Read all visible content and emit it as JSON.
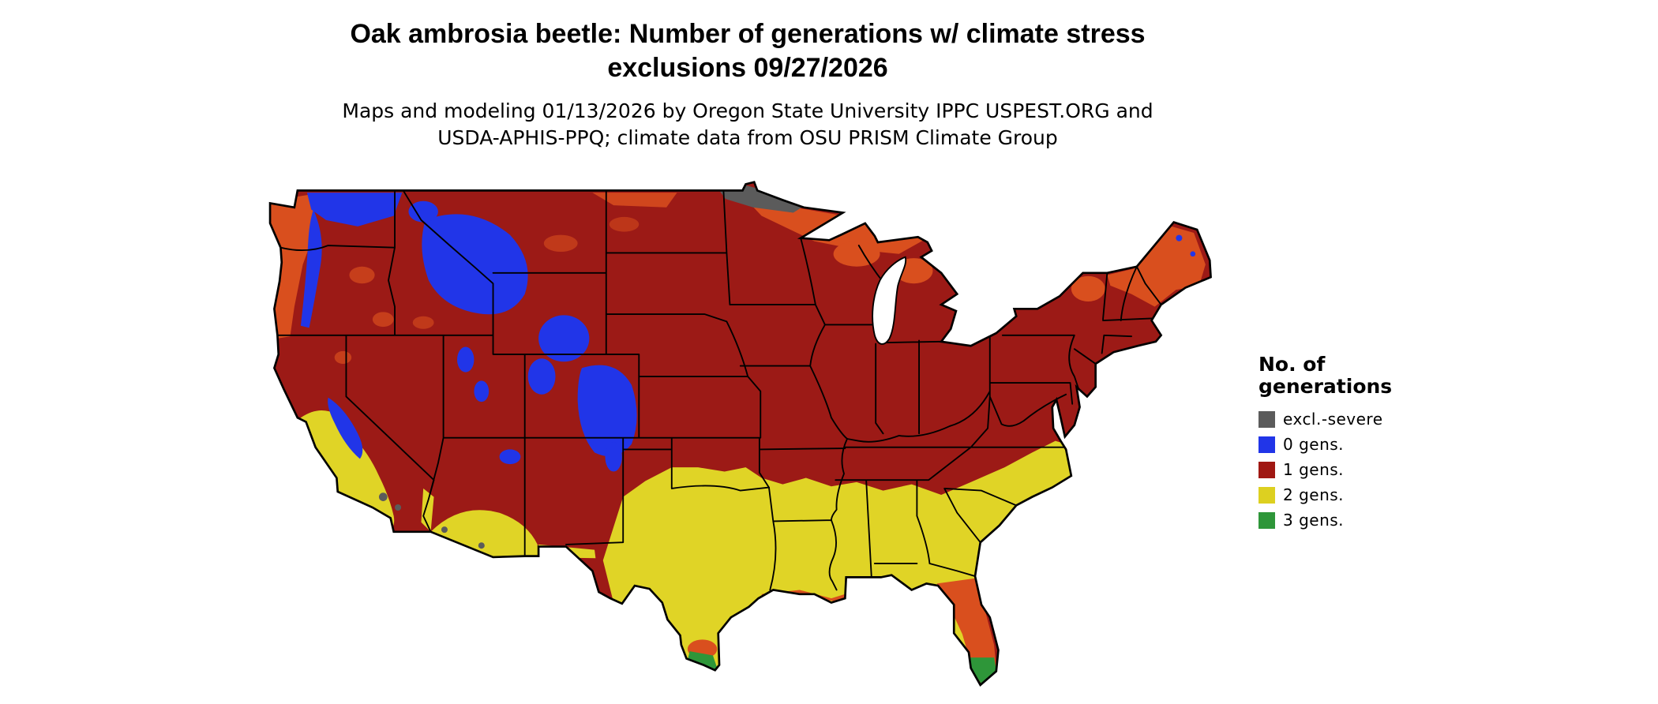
{
  "title": {
    "line1": "Oak ambrosia beetle: Number of generations w/ climate stress",
    "line2": "exclusions 09/27/2026"
  },
  "subtitle": {
    "line1": "Maps and modeling 01/13/2026 by Oregon State University IPPC USPEST.ORG and",
    "line2": "USDA-APHIS-PPQ; climate data from OSU PRISM Climate Group"
  },
  "legend": {
    "title_line1": "No. of",
    "title_line2": "generations",
    "items": [
      {
        "label": "excl.-severe",
        "color": "#5b5b5b"
      },
      {
        "label": "0 gens.",
        "color": "#2135e8"
      },
      {
        "label": "1 gens.",
        "color": "#a01813"
      },
      {
        "label": "2 gens.",
        "color": "#ddd020"
      },
      {
        "label": "3 gens.",
        "color": "#2e9639"
      }
    ]
  },
  "map": {
    "region": "Continental United States",
    "colors": {
      "gens1": "#9c1a16",
      "gens0": "#2135e8",
      "gens2": "#e0d426",
      "gens3": "#2e9639",
      "severe": "#5b5b5b",
      "stress_orange": "#d94f1e",
      "seafoam": "#8fd9a8",
      "border": "#000000",
      "water": "#ffffff"
    }
  }
}
